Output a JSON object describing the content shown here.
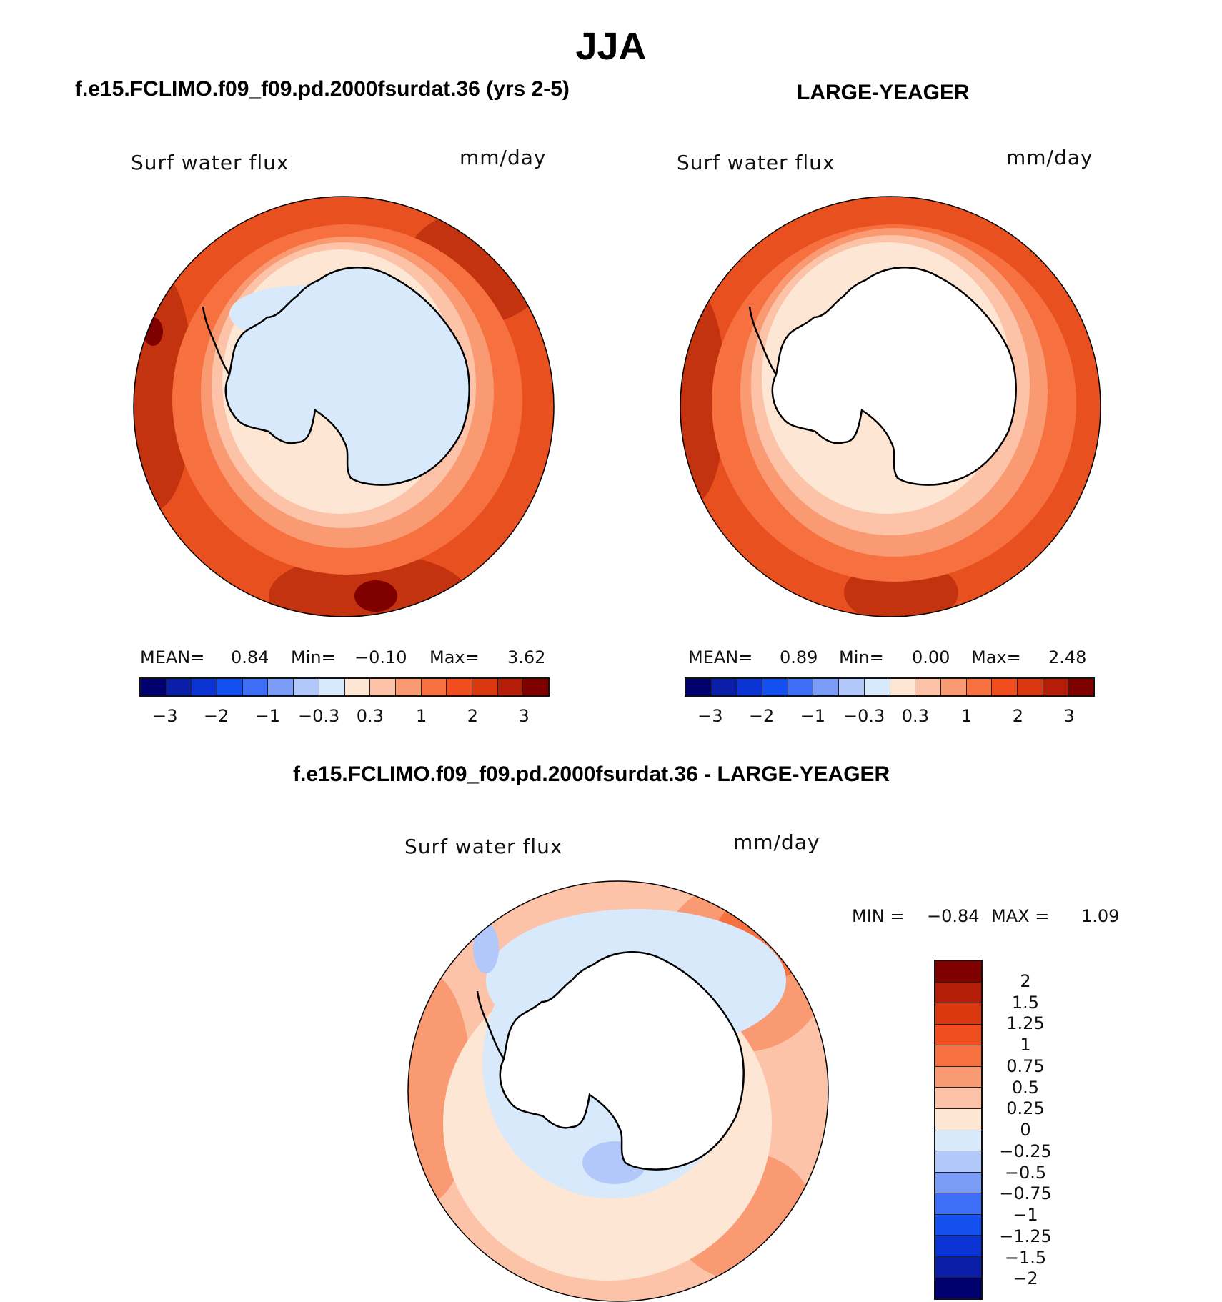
{
  "figure_title": "JJA",
  "panels": [
    {
      "case_title": "f.e15.FCLIMO.f09_f09.pd.2000fsurdat.36 (yrs 2-5)",
      "variable": "Surf water flux",
      "units": "mm/day",
      "stats": {
        "mean_label": "MEAN=",
        "mean": "0.84",
        "min_label": "Min=",
        "min": "−0.10",
        "max_label": "Max=",
        "max": "3.62"
      }
    },
    {
      "case_title": "LARGE-YEAGER",
      "variable": "Surf water flux",
      "units": "mm/day",
      "stats": {
        "mean_label": "MEAN=",
        "mean": "0.89",
        "min_label": "Min=",
        "min": "0.00",
        "max_label": "Max=",
        "max": "2.48"
      }
    },
    {
      "case_title": "f.e15.FCLIMO.f09_f09.pd.2000fsurdat.36 - LARGE-YEAGER",
      "variable": "Surf water flux",
      "units": "mm/day",
      "stats": {
        "min_label": "MIN =",
        "min": "−0.84",
        "max_label": "MAX =",
        "max": "1.09"
      }
    }
  ],
  "colorbar_top": {
    "colors": [
      "#00006e",
      "#0a1ea8",
      "#0b32d2",
      "#1450f0",
      "#3e6ef5",
      "#7a9cf7",
      "#b2c8fa",
      "#d8e9fb",
      "#fde6d4",
      "#fcc3a8",
      "#fa9a73",
      "#f7703f",
      "#f04e1e",
      "#d9370e",
      "#b41d08",
      "#800000"
    ],
    "tick_labels": [
      "−3",
      "−2",
      "−1",
      "−0.3",
      "0.3",
      "1",
      "2",
      "3"
    ]
  },
  "colorbar_diff": {
    "colors": [
      "#800000",
      "#b41d08",
      "#d9370e",
      "#f04e1e",
      "#f7703f",
      "#fa9a73",
      "#fcc3a8",
      "#fde6d4",
      "#d8e9fb",
      "#b2c8fa",
      "#7a9cf7",
      "#3e6ef5",
      "#1450f0",
      "#0b32d2",
      "#0a1ea8",
      "#00006e"
    ],
    "tick_labels": [
      "2",
      "1.5",
      "1.25",
      "1",
      "0.75",
      "0.5",
      "0.25",
      "0",
      "−0.25",
      "−0.5",
      "−0.75",
      "−1",
      "−1.25",
      "−1.5",
      "−2"
    ]
  },
  "map_colors": {
    "deep": "#c4330f",
    "outer": "#e8501f",
    "mid": "#f7703f",
    "light": "#fa9a73",
    "pale": "#fcc3a8",
    "cream": "#fde6d4",
    "ice": "#d8e9fb",
    "icemid": "#b2c8fa",
    "white": "#ffffff",
    "max": "#800000"
  }
}
